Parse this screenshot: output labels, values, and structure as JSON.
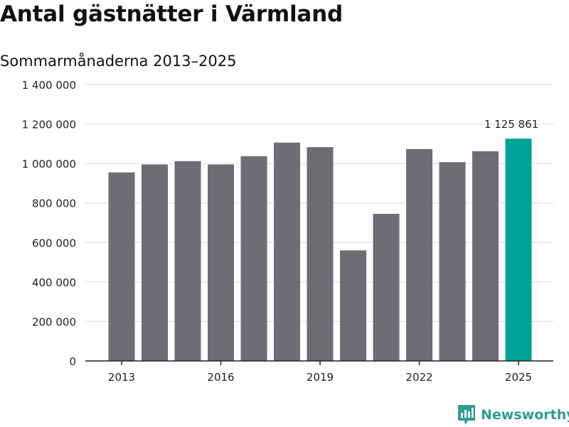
{
  "chart_data": {
    "type": "bar",
    "title": "Antal gästnätter i Värmland",
    "subtitle": "Sommarmånaderna 2013–2025",
    "x": [
      2013,
      2014,
      2015,
      2016,
      2017,
      2018,
      2019,
      2020,
      2021,
      2022,
      2023,
      2024,
      2025
    ],
    "values": [
      955000,
      995000,
      1012000,
      995000,
      1037000,
      1106000,
      1083000,
      560000,
      745000,
      1073000,
      1007000,
      1062000,
      1125861
    ],
    "x_tick_labels": [
      "2013",
      "2016",
      "2019",
      "2022",
      "2025"
    ],
    "y_tick_labels": [
      "0",
      "200 000",
      "400 000",
      "600 000",
      "800 000",
      "1 000 000",
      "1 200 000",
      "1 400 000"
    ],
    "ylim": [
      0,
      1400000
    ],
    "grid": "horizontal",
    "highlight_index": 12,
    "highlight_label": "1 125 861",
    "colors": {
      "bar": "#6e6d73",
      "highlight": "#00a398",
      "grid": "#dcdcdc",
      "axis": "#222222"
    }
  },
  "brand": {
    "name": "Newsworthy",
    "icon": "newsworthy-logo-icon",
    "color": "#2d9e8e"
  }
}
